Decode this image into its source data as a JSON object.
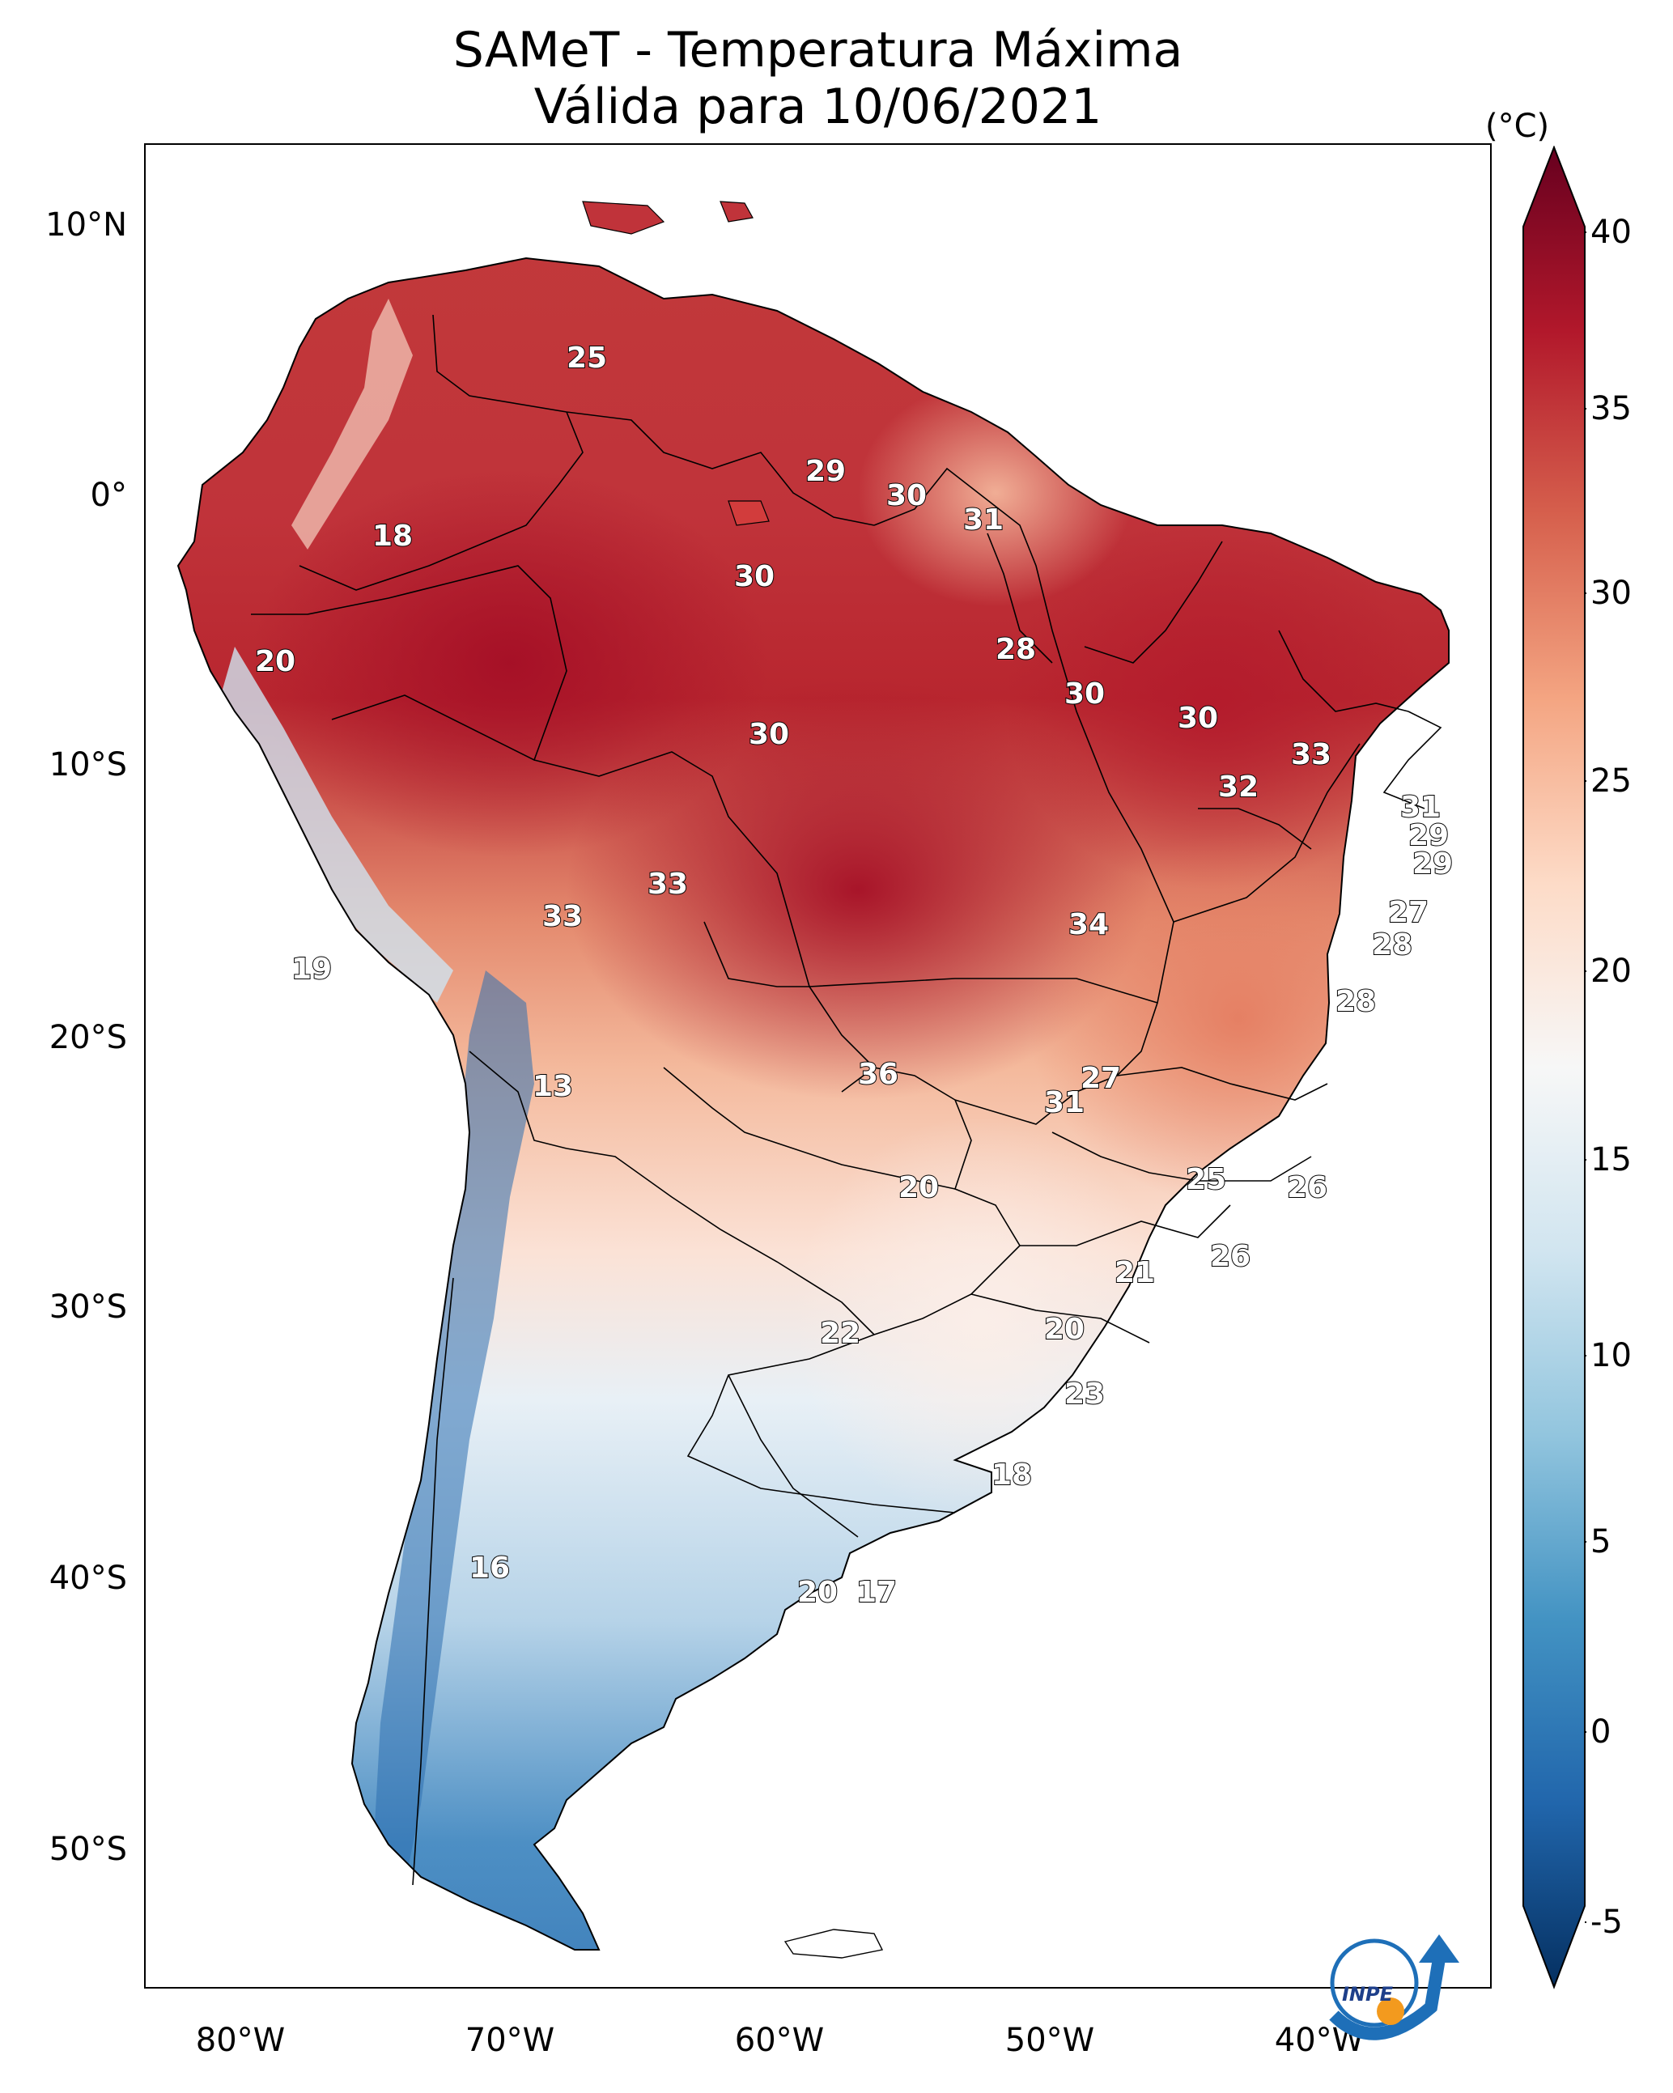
{
  "title_line1": "SAMeT - Temperatura Máxima",
  "title_line2": "Válida para 10/06/2021",
  "colorbar": {
    "unit": "(°C)",
    "ticks": [
      "40",
      "35",
      "30",
      "25",
      "20",
      "15",
      "10",
      "5",
      "0",
      "-5"
    ],
    "colors": [
      "#67001f",
      "#b2182b",
      "#d6604d",
      "#f4a582",
      "#fddbc7",
      "#f7f7f7",
      "#d1e5f0",
      "#92c5de",
      "#4393c3",
      "#2166ac",
      "#053061"
    ]
  },
  "axes": {
    "lat_labels": [
      "10°N",
      "0°",
      "10°S",
      "20°S",
      "30°S",
      "40°S",
      "50°S"
    ],
    "lon_labels": [
      "80°W",
      "70°W",
      "60°W",
      "50°W",
      "40°W"
    ]
  },
  "labels": [
    "25",
    "29",
    "30",
    "31",
    "18",
    "30",
    "20",
    "28",
    "30",
    "30",
    "30",
    "33",
    "32",
    "31",
    "29",
    "29",
    "33",
    "33",
    "34",
    "27",
    "19",
    "28",
    "28",
    "13",
    "36",
    "27",
    "31",
    "20",
    "25",
    "26",
    "21",
    "26",
    "22",
    "20",
    "23",
    "18",
    "16",
    "20",
    "17"
  ],
  "logo_text": "INPE"
}
